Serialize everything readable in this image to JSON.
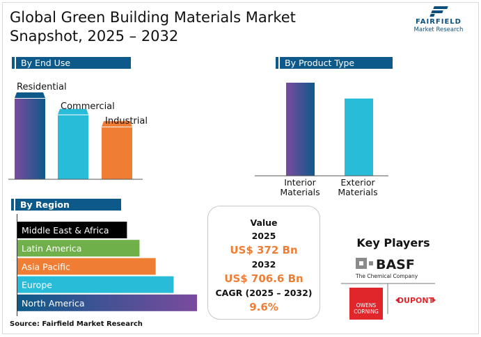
{
  "title": "Global Green Building Materials Market Snapshot, 2025 – 2032",
  "logo": {
    "name": "FAIRFIELD",
    "subtitle": "Market Research",
    "icon": "fairfield-logo-icon"
  },
  "sections": {
    "end_use": "By End Use",
    "product_type": "By Product Type",
    "region": "By Region"
  },
  "chart_data": [
    {
      "type": "bar",
      "title": "By End Use",
      "categories": [
        "Residential",
        "Commercial",
        "Industrial"
      ],
      "values": [
        100,
        81,
        67
      ],
      "ylim": [
        0,
        100
      ],
      "colors": [
        "gradient:#7b4a9e-#0d5a8a",
        "#28bcd9",
        "#ef7e34"
      ],
      "grid": false,
      "xlabel": "",
      "ylabel": ""
    },
    {
      "type": "bar",
      "title": "By Product Type",
      "categories": [
        "Interior Materials",
        "Exterior Materials"
      ],
      "values": [
        100,
        83
      ],
      "ylim": [
        0,
        100
      ],
      "colors": [
        "gradient:#7b4a9e-#0d5a8a",
        "#28bcd9"
      ],
      "grid": false,
      "xlabel": "",
      "ylabel": ""
    },
    {
      "type": "bar",
      "orientation": "horizontal",
      "title": "By Region",
      "categories": [
        "Middle East & Africa",
        "Latin America",
        "Asia Pacific",
        "Europe",
        "North America"
      ],
      "values": [
        61,
        68,
        77,
        87,
        100
      ],
      "xlim": [
        0,
        100
      ],
      "colors": [
        "#000000",
        "#6fb04a",
        "#ef7e34",
        "#28bcd9",
        "gradient:#0d5a8a-#7b4a9e"
      ],
      "grid": false,
      "xlabel": "",
      "ylabel": ""
    }
  ],
  "value_box": {
    "label": "Value",
    "year_start": "2025",
    "value_start": "US$ 372 Bn",
    "year_end": "2032",
    "value_end": "US$ 706.6 Bn",
    "cagr_label": "CAGR (2025 – 2032)",
    "cagr_value": "9.6%"
  },
  "key_players": {
    "title": "Key Players",
    "companies": [
      {
        "name": "BASF",
        "tagline": "The Chemical Company"
      },
      {
        "name": "Owens Corning",
        "line1": "OWENS",
        "line2": "CORNING"
      },
      {
        "name": "DUPONT"
      }
    ]
  },
  "source": "Source: Fairfield Market Research"
}
